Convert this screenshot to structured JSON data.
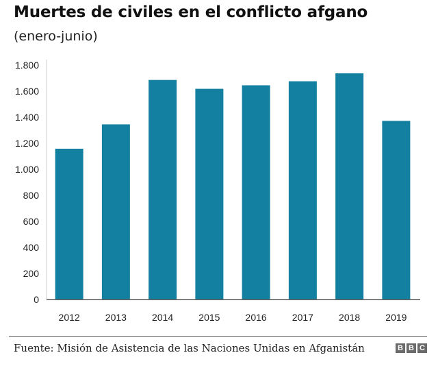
{
  "chart_data": {
    "type": "bar",
    "title": "Muertes de civiles en el conflicto afgano",
    "subtitle": "(enero-junio)",
    "categories": [
      "2012",
      "2013",
      "2014",
      "2015",
      "2016",
      "2017",
      "2018",
      "2019"
    ],
    "values": [
      1158,
      1345,
      1686,
      1618,
      1645,
      1676,
      1737,
      1372
    ],
    "ylim": [
      0,
      1800
    ],
    "yticks": [
      0,
      200,
      400,
      600,
      800,
      1000,
      1200,
      1400,
      1600,
      1800
    ],
    "ytick_labels": [
      "0",
      "200",
      "400",
      "600",
      "800",
      "1.000",
      "1.200",
      "1.400",
      "1.600",
      "1.800"
    ],
    "grid": false,
    "bar_color": "#1380A1"
  },
  "footer": {
    "source": "Fuente: Misión de Asistencia de las Naciones Unidas en Afganistán",
    "logo": "BBC"
  }
}
